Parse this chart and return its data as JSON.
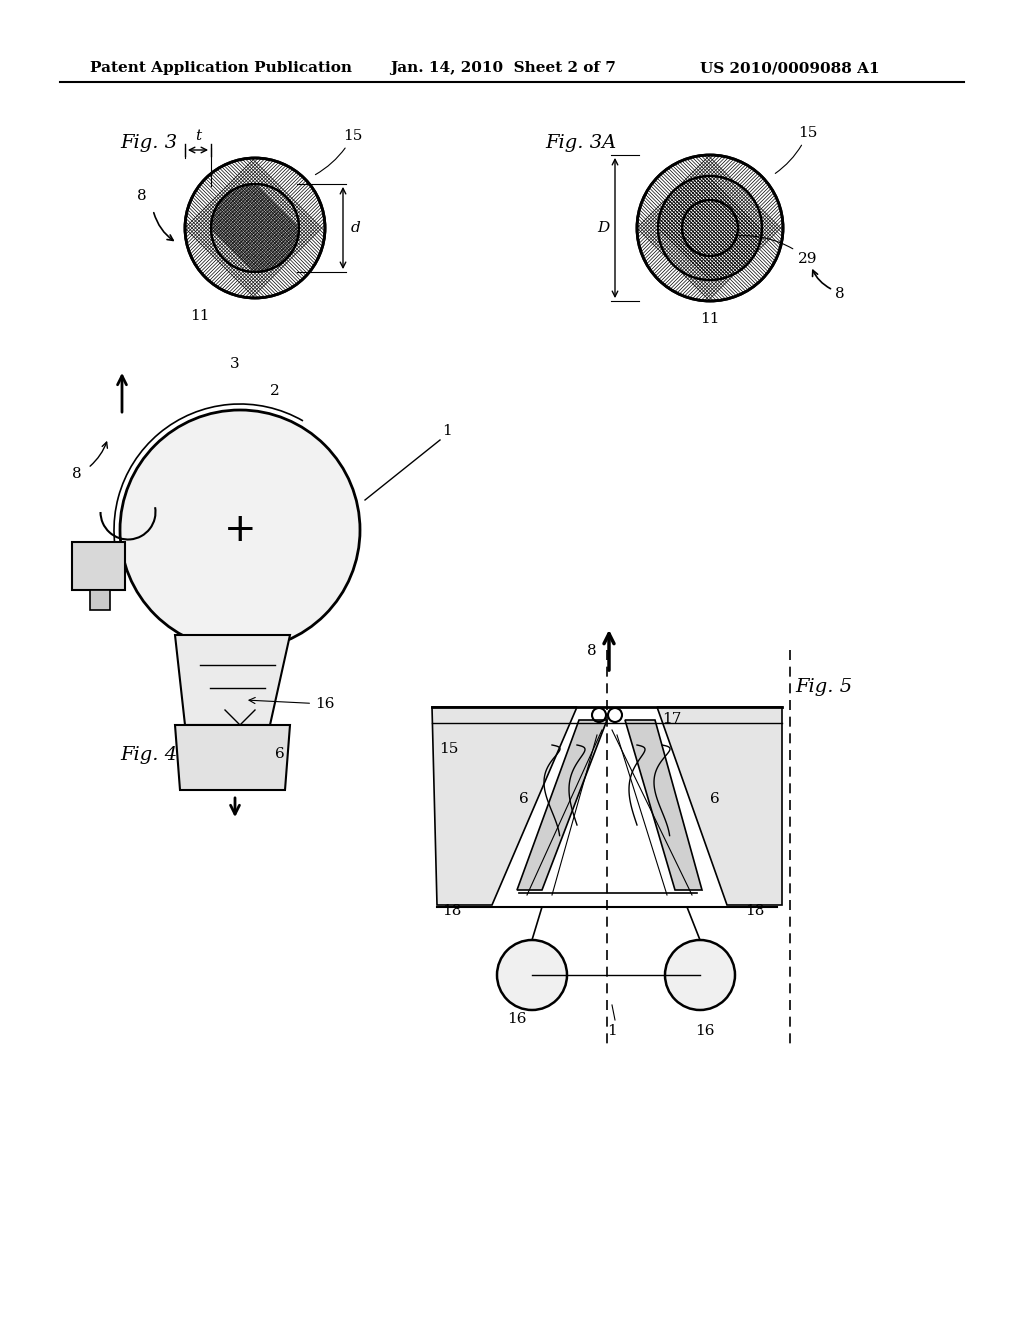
{
  "bg_color": "#ffffff",
  "header_left": "Patent Application Publication",
  "header_mid": "Jan. 14, 2010  Sheet 2 of 7",
  "header_right": "US 2010/0009088 A1",
  "fig3_label": "Fig. 3",
  "fig3a_label": "Fig. 3A",
  "fig4_label": "Fig. 4",
  "fig5_label": "Fig. 5"
}
